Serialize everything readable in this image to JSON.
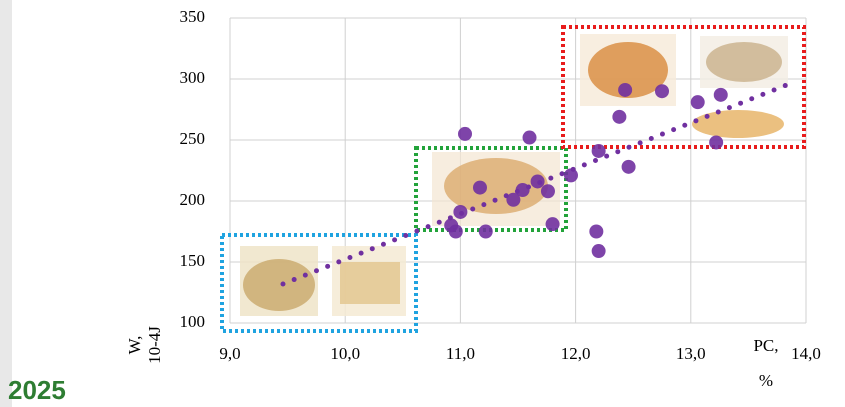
{
  "chart_data": {
    "type": "scatter",
    "xlabel": [
      "PC,",
      "%"
    ],
    "ylabel": [
      "W,",
      "10-4J"
    ],
    "xlim": [
      9,
      14
    ],
    "ylim": [
      100,
      350
    ],
    "xticks": [
      {
        "value": 9,
        "label": "9,0"
      },
      {
        "value": 10,
        "label": "10,0"
      },
      {
        "value": 11,
        "label": "11,0"
      },
      {
        "value": 12,
        "label": "12,0"
      },
      {
        "value": 13,
        "label": "13,0"
      },
      {
        "value": 14,
        "label": "14,0"
      }
    ],
    "yticks": [
      100,
      150,
      200,
      250,
      300,
      350
    ],
    "grid": true,
    "color": "#7030a0",
    "x": [
      11.04,
      11.6,
      12.38,
      12.43,
      12.75,
      13.06,
      13.26,
      13.22,
      12.46,
      12.2,
      11.96,
      12.18,
      12.2,
      11.76,
      11.67,
      11.54,
      11.46,
      11.17,
      11.0,
      10.92,
      10.96,
      11.22,
      11.8
    ],
    "values": [
      255,
      252,
      269,
      291,
      290,
      281,
      287,
      248,
      228,
      241,
      221,
      175,
      159,
      208,
      216,
      209,
      201,
      211,
      191,
      180,
      175,
      175,
      181
    ],
    "trend": {
      "x": [
        9.46,
        13.91
      ],
      "values": [
        132,
        298
      ]
    }
  },
  "footer": "2025"
}
